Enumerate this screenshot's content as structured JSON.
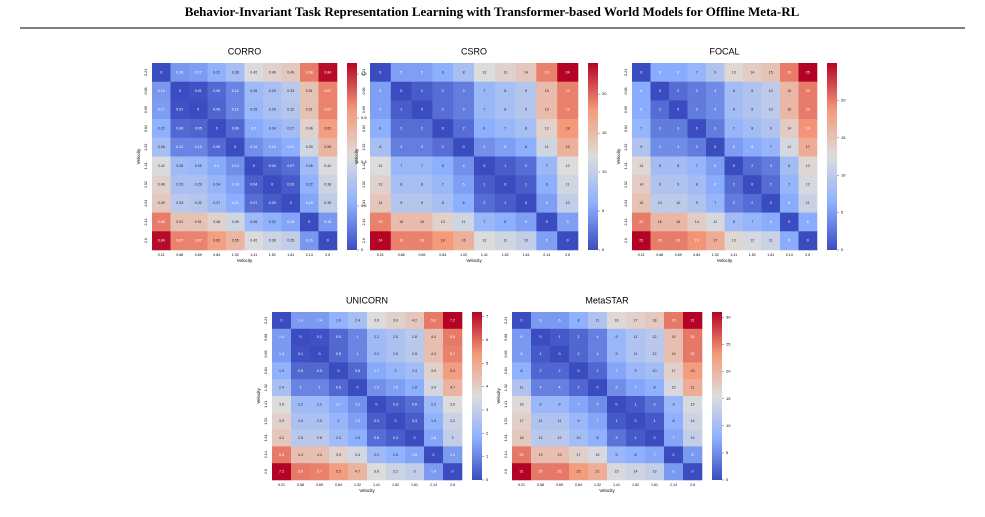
{
  "title": "Behavior-Invariant Task Representation Learning with Transformer-based World Models for Offline Meta-RL",
  "chart_data": [
    {
      "type": "heatmap",
      "title": "CORRO",
      "x_label": "Velocity",
      "y_label": "Velocity",
      "categories": [
        "0.21",
        "0.68",
        "0.69",
        "0.84",
        "1.02",
        "1.41",
        "1.52",
        "1.61",
        "2.14",
        "2.6"
      ],
      "zlim": [
        0,
        0.85
      ],
      "zticks": [
        0,
        0.2,
        0.4,
        0.6,
        0.8
      ],
      "values": [
        [
          0,
          0.16,
          0.17,
          0.22,
          0.28,
          0.42,
          0.46,
          0.49,
          0.68,
          0.84
        ],
        [
          0.16,
          0,
          0.01,
          0.06,
          0.12,
          0.26,
          0.29,
          0.33,
          0.51,
          0.67
        ],
        [
          0.17,
          0.01,
          0,
          0.05,
          0.12,
          0.25,
          0.29,
          0.32,
          0.51,
          0.67
        ],
        [
          0.22,
          0.06,
          0.05,
          0,
          0.06,
          0.2,
          0.24,
          0.27,
          0.46,
          0.62
        ],
        [
          0.28,
          0.12,
          0.12,
          0.06,
          0,
          0.14,
          0.18,
          0.21,
          0.39,
          0.55
        ],
        [
          0.42,
          0.26,
          0.25,
          0.2,
          0.14,
          0,
          0.04,
          0.07,
          0.26,
          0.42
        ],
        [
          0.46,
          0.29,
          0.29,
          0.24,
          0.18,
          0.04,
          0,
          0.03,
          0.22,
          0.38
        ],
        [
          0.49,
          0.33,
          0.32,
          0.27,
          0.21,
          0.07,
          0.03,
          0,
          0.19,
          0.35
        ],
        [
          0.68,
          0.51,
          0.51,
          0.46,
          0.39,
          0.26,
          0.22,
          0.19,
          0,
          0.16
        ],
        [
          0.84,
          0.67,
          0.67,
          0.62,
          0.55,
          0.42,
          0.38,
          0.35,
          0.16,
          0
        ]
      ]
    },
    {
      "type": "heatmap",
      "title": "CSRO",
      "x_label": "Velocity",
      "y_label": "Velocity",
      "categories": [
        "0.21",
        "0.68",
        "0.69",
        "0.84",
        "1.02",
        "1.41",
        "1.52",
        "1.61",
        "2.14",
        "2.6"
      ],
      "zlim": [
        0,
        24
      ],
      "zticks": [
        0,
        5,
        10,
        15,
        20
      ],
      "values": [
        [
          0,
          5,
          5,
          6,
          8,
          12,
          13,
          14,
          19,
          24
        ],
        [
          5,
          0,
          1,
          2,
          3,
          7,
          8,
          9,
          15,
          19
        ],
        [
          5,
          1,
          0,
          2,
          3,
          7,
          8,
          9,
          15,
          19
        ],
        [
          6,
          2,
          2,
          0,
          2,
          6,
          7,
          8,
          13,
          18
        ],
        [
          8,
          3,
          3,
          2,
          0,
          4,
          5,
          6,
          11,
          16
        ],
        [
          12,
          7,
          7,
          6,
          4,
          0,
          1,
          2,
          7,
          12
        ],
        [
          13,
          8,
          8,
          7,
          5,
          1,
          0,
          1,
          6,
          11
        ],
        [
          14,
          9,
          9,
          8,
          6,
          2,
          1,
          0,
          5,
          10
        ],
        [
          19,
          15,
          15,
          13,
          11,
          7,
          6,
          5,
          0,
          5
        ],
        [
          24,
          19,
          19,
          18,
          16,
          12,
          11,
          10,
          5,
          0
        ]
      ]
    },
    {
      "type": "heatmap",
      "title": "FOCAL",
      "x_label": "Velocity",
      "y_label": "Velocity",
      "categories": [
        "0.21",
        "0.68",
        "0.69",
        "0.84",
        "1.02",
        "1.41",
        "1.52",
        "1.61",
        "2.14",
        "2.6"
      ],
      "zlim": [
        0,
        25
      ],
      "zticks": [
        0,
        5,
        10,
        15,
        20
      ],
      "values": [
        [
          0,
          6,
          6,
          7,
          9,
          13,
          14,
          15,
          20,
          25
        ],
        [
          6,
          0,
          2,
          3,
          4,
          8,
          9,
          10,
          16,
          20
        ],
        [
          6,
          2,
          0,
          3,
          4,
          8,
          9,
          10,
          16,
          20
        ],
        [
          7,
          3,
          3,
          0,
          3,
          7,
          8,
          9,
          14,
          19
        ],
        [
          9,
          4,
          4,
          3,
          0,
          5,
          6,
          7,
          12,
          17
        ],
        [
          13,
          8,
          8,
          7,
          5,
          0,
          2,
          3,
          8,
          13
        ],
        [
          14,
          9,
          9,
          8,
          6,
          2,
          0,
          2,
          7,
          12
        ],
        [
          15,
          10,
          10,
          9,
          7,
          3,
          2,
          0,
          6,
          11
        ],
        [
          20,
          16,
          16,
          14,
          12,
          8,
          7,
          6,
          0,
          6
        ],
        [
          25,
          20,
          20,
          19,
          17,
          13,
          12,
          11,
          6,
          0
        ]
      ]
    },
    {
      "type": "heatmap",
      "title": "UNICORN",
      "x_label": "Velocity",
      "y_label": "Velocity",
      "categories": [
        "0.21",
        "0.68",
        "0.69",
        "0.84",
        "1.02",
        "1.41",
        "1.52",
        "1.61",
        "2.14",
        "2.6"
      ],
      "zlim": [
        0,
        7.2
      ],
      "zticks": [
        0,
        1,
        2,
        3,
        4,
        5,
        6,
        7
      ],
      "values": [
        [
          0,
          1.4,
          1.4,
          1.9,
          2.4,
          3.6,
          3.9,
          4.2,
          5.8,
          7.2
        ],
        [
          1.4,
          0,
          0.1,
          0.5,
          1,
          2.2,
          2.5,
          2.8,
          4.4,
          5.8
        ],
        [
          1.4,
          0.1,
          0,
          0.5,
          1,
          2.2,
          2.5,
          2.8,
          4.4,
          5.7
        ],
        [
          1.9,
          0.5,
          0.5,
          0,
          0.5,
          1.7,
          2,
          2.3,
          3.9,
          5.3
        ],
        [
          2.4,
          1,
          1,
          0.5,
          0,
          1.2,
          1.5,
          1.8,
          3.4,
          4.7
        ],
        [
          3.6,
          2.2,
          2.2,
          1.7,
          1.2,
          0,
          0.3,
          0.6,
          2.2,
          3.6
        ],
        [
          3.9,
          2.5,
          2.5,
          2,
          1.5,
          0.3,
          0,
          0.3,
          1.9,
          3.2
        ],
        [
          4.2,
          2.8,
          2.8,
          2.3,
          1.8,
          0.6,
          0.3,
          0,
          1.6,
          3
        ],
        [
          5.8,
          4.4,
          4.4,
          3.9,
          3.4,
          2.2,
          1.9,
          1.6,
          0,
          1.4
        ],
        [
          7.2,
          5.8,
          5.7,
          5.3,
          4.7,
          3.6,
          3.2,
          3,
          1.4,
          0
        ]
      ]
    },
    {
      "type": "heatmap",
      "title": "MetaSTAR",
      "x_label": "Velocity",
      "y_label": "Velocity",
      "categories": [
        "0.21",
        "0.68",
        "0.69",
        "0.84",
        "1.02",
        "1.41",
        "1.52",
        "1.61",
        "2.14",
        "2.6"
      ],
      "zlim": [
        0,
        31
      ],
      "zticks": [
        0,
        5,
        10,
        15,
        20,
        25,
        30
      ],
      "values": [
        [
          0,
          6,
          6,
          8,
          11,
          16,
          17,
          18,
          25,
          31
        ],
        [
          6,
          0,
          1,
          2,
          4,
          9,
          11,
          12,
          19,
          25
        ],
        [
          6,
          1,
          0,
          2,
          4,
          9,
          11,
          12,
          19,
          25
        ],
        [
          8,
          2,
          2,
          0,
          2,
          7,
          9,
          10,
          17,
          23
        ],
        [
          11,
          4,
          4,
          2,
          0,
          5,
          7,
          8,
          15,
          21
        ],
        [
          16,
          9,
          9,
          7,
          5,
          0,
          1,
          3,
          9,
          15
        ],
        [
          17,
          11,
          11,
          9,
          7,
          1,
          0,
          1,
          8,
          14
        ],
        [
          18,
          12,
          12,
          10,
          8,
          3,
          1,
          0,
          7,
          13
        ],
        [
          25,
          19,
          19,
          17,
          15,
          9,
          8,
          7,
          0,
          6
        ],
        [
          31,
          25,
          25,
          23,
          21,
          15,
          14,
          13,
          6,
          0
        ]
      ]
    }
  ]
}
